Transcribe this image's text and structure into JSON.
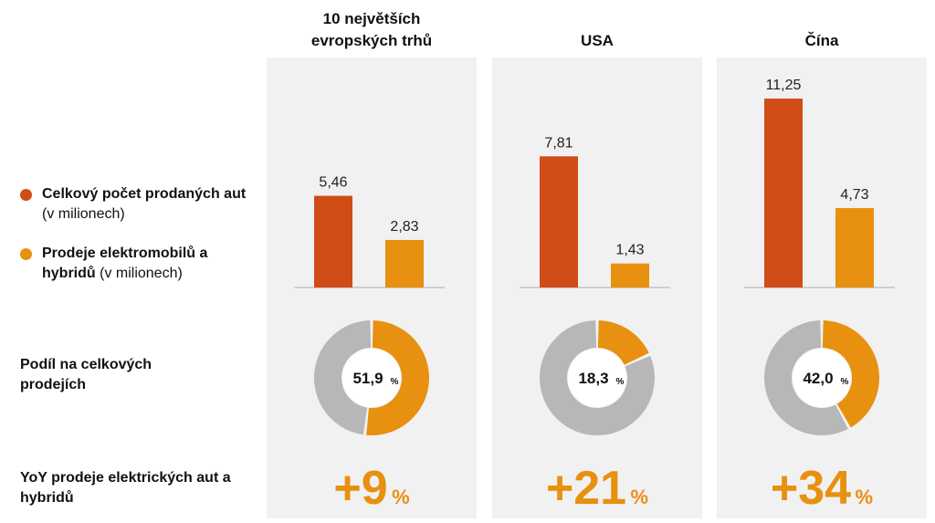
{
  "colors": {
    "total": "#d04d18",
    "ev": "#e8900f",
    "rest": "#b7b7b7",
    "panel": "#f1f1f1"
  },
  "legend": [
    {
      "bold": "Celkový počet prodaných aut",
      "normal": " (v milionech)",
      "color": "#d04d18"
    },
    {
      "bold": "Prodeje elektromobilů a hybridů",
      "normal": " (v milionech)",
      "color": "#e8900f"
    }
  ],
  "row_labels": {
    "share": "Podíl na celkových prodejích",
    "yoy": "YoY prodeje elektrických aut a hybridů"
  },
  "chart_data": [
    {
      "type": "bar",
      "title": "10 největších evropských trhů",
      "categories": [
        "Celkový počet prodaných aut",
        "Prodeje elektromobilů a hybridů"
      ],
      "values": [
        5.46,
        2.83
      ],
      "value_labels": [
        "5,46",
        "2,83"
      ],
      "share_pct": 51.9,
      "share_label": "51,9",
      "yoy_label": "+9"
    },
    {
      "type": "bar",
      "title": "USA",
      "categories": [
        "Celkový počet prodaných aut",
        "Prodeje elektromobilů a hybridů"
      ],
      "values": [
        7.81,
        1.43
      ],
      "value_labels": [
        "7,81",
        "1,43"
      ],
      "share_pct": 18.3,
      "share_label": "18,3",
      "yoy_label": "+21"
    },
    {
      "type": "bar",
      "title": "Čína",
      "categories": [
        "Celkový počet prodaných aut",
        "Prodeje elektromobilů a hybridů"
      ],
      "values": [
        11.25,
        4.73
      ],
      "value_labels": [
        "11,25",
        "4,73"
      ],
      "share_pct": 42.0,
      "share_label": "42,0",
      "yoy_label": "+34"
    }
  ],
  "percent_sign": "%"
}
